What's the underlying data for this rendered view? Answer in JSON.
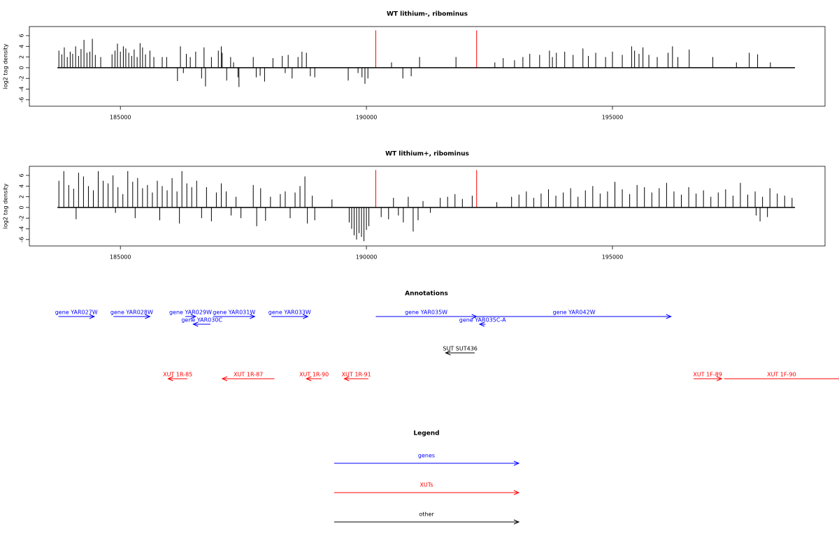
{
  "chart_data": [
    {
      "type": "bar",
      "title": "WT lithium-, ribominus",
      "ylabel": "log2 tag density",
      "xlim": [
        183150,
        199320
      ],
      "ylim": [
        -7.2,
        7.7
      ],
      "xticks": [
        185000,
        190000,
        195000
      ],
      "yticks": [
        -6,
        -4,
        -2,
        0,
        2,
        4,
        6
      ],
      "color": "#000000",
      "baseline": [
        183720,
        198710
      ],
      "x": [
        183750,
        183810,
        183860,
        183920,
        183980,
        184030,
        184090,
        184150,
        184200,
        184260,
        184320,
        184380,
        184430,
        184490,
        184600,
        184830,
        184890,
        184940,
        185000,
        185060,
        185110,
        185170,
        185230,
        185280,
        185340,
        185400,
        185450,
        185510,
        185600,
        185680,
        185850,
        185940,
        186160,
        186220,
        186280,
        186340,
        186420,
        186530,
        186650,
        186700,
        186730,
        186850,
        186990,
        187050,
        187070,
        187160,
        187240,
        187300,
        187390,
        187410,
        187700,
        187760,
        187840,
        187930,
        188100,
        188290,
        188350,
        188410,
        188490,
        188610,
        188690,
        188780,
        188860,
        188950,
        189630,
        189830,
        189910,
        189970,
        190030,
        190510,
        190740,
        190910,
        191080,
        191820,
        192610,
        192780,
        193010,
        193180,
        193320,
        193520,
        193720,
        193780,
        193860,
        194030,
        194200,
        194400,
        194510,
        194660,
        194860,
        195000,
        195200,
        195390,
        195450,
        195540,
        195620,
        195740,
        195910,
        196130,
        196220,
        196330,
        196560,
        197040,
        197520,
        197780,
        197950,
        198210
      ],
      "values": [
        3.2,
        2.5,
        3.8,
        2.0,
        3.0,
        2.6,
        4.0,
        2.2,
        3.5,
        5.2,
        2.8,
        3.0,
        5.4,
        2.4,
        2.0,
        2.5,
        3.2,
        4.5,
        3.0,
        4.0,
        3.6,
        2.8,
        2.2,
        3.4,
        2.0,
        4.6,
        3.8,
        2.5,
        3.2,
        2.0,
        2.0,
        2.0,
        -2.5,
        4.0,
        -1.0,
        2.6,
        2.0,
        3.0,
        -2.0,
        3.8,
        -3.5,
        2.0,
        3.2,
        4.0,
        2.8,
        -2.4,
        2.0,
        1.0,
        -1.8,
        -3.6,
        2.0,
        -1.8,
        -1.5,
        -2.6,
        1.8,
        2.2,
        -1.0,
        2.4,
        -2.0,
        2.0,
        3.0,
        2.8,
        -1.6,
        -1.8,
        -2.4,
        -1.0,
        -1.8,
        -3.0,
        -2.0,
        1.0,
        -2.0,
        -1.6,
        2.0,
        2.0,
        1.0,
        1.8,
        1.4,
        2.0,
        2.6,
        2.4,
        3.2,
        2.0,
        2.8,
        3.0,
        2.4,
        3.6,
        2.2,
        2.8,
        2.0,
        3.0,
        2.4,
        4.0,
        3.2,
        2.6,
        3.8,
        2.4,
        2.0,
        2.8,
        4.0,
        2.0,
        3.4,
        2.0,
        1.0,
        2.8,
        2.5,
        1.0
      ],
      "highlight": {
        "color": "#ff0000",
        "x": [
          190190,
          192240
        ],
        "values": [
          7,
          7
        ]
      }
    },
    {
      "type": "bar",
      "title": "WT lithium+, ribominus",
      "ylabel": "log2 tag density",
      "xlim": [
        183150,
        199320
      ],
      "ylim": [
        -7.2,
        7.7
      ],
      "xticks": [
        185000,
        190000,
        195000
      ],
      "yticks": [
        -6,
        -4,
        -2,
        0,
        2,
        4,
        6
      ],
      "color": "#000000",
      "baseline": [
        183720,
        198710
      ],
      "x": [
        183750,
        183850,
        183950,
        184050,
        184150,
        184250,
        184350,
        184450,
        184550,
        184650,
        184750,
        184850,
        184950,
        185050,
        185150,
        185250,
        185350,
        185450,
        185550,
        185650,
        185750,
        185850,
        185950,
        186050,
        186150,
        186250,
        186350,
        186450,
        184100,
        184900,
        185300,
        185800,
        186200,
        186550,
        186650,
        186750,
        186850,
        186950,
        187050,
        187150,
        187250,
        187350,
        187450,
        187700,
        187770,
        187850,
        187950,
        188050,
        188250,
        188350,
        188450,
        188550,
        188650,
        188750,
        188800,
        188900,
        188950,
        189300,
        189650,
        189700,
        189750,
        189800,
        189850,
        189900,
        189950,
        190000,
        190050,
        190300,
        190450,
        190550,
        190650,
        190750,
        190850,
        190950,
        191050,
        191150,
        191300,
        191500,
        191650,
        191800,
        191950,
        192150,
        192650,
        192950,
        193100,
        193250,
        193400,
        193550,
        193700,
        193850,
        194000,
        194150,
        194300,
        194450,
        194600,
        194750,
        194900,
        195050,
        195200,
        195350,
        195500,
        195650,
        195800,
        195950,
        196100,
        196250,
        196400,
        196550,
        196700,
        196850,
        197000,
        197150,
        197300,
        197450,
        197600,
        197750,
        197900,
        198050,
        198200,
        198350,
        198500,
        198650,
        197920,
        198000,
        198150
      ],
      "values": [
        5,
        6.8,
        4.2,
        3.5,
        6.5,
        5.8,
        4,
        3.2,
        6.8,
        5,
        4.5,
        6,
        3.8,
        2.5,
        6.8,
        4.8,
        5.5,
        3.6,
        4.2,
        2.8,
        5,
        4,
        3.2,
        5.5,
        3,
        6.8,
        4.5,
        3.8,
        -2.2,
        -1.0,
        -2.0,
        -2.4,
        -3.0,
        5.0,
        -2.0,
        3.8,
        -2.6,
        2.8,
        4.5,
        3.0,
        -1.5,
        2.0,
        -2.0,
        4.2,
        -3.5,
        3.6,
        -2.5,
        2.0,
        2.5,
        3.0,
        -2.0,
        2.8,
        4.0,
        5.8,
        -3.0,
        2.2,
        -2.4,
        1.5,
        -2.8,
        -4.0,
        -5.2,
        -6.0,
        -4.8,
        -5.5,
        -6.3,
        -4.2,
        -3.5,
        -1.8,
        -2.2,
        1.8,
        -1.5,
        -2.8,
        2.0,
        -4.5,
        -2.4,
        1.2,
        -1.0,
        1.8,
        2.0,
        2.5,
        1.6,
        2.2,
        1.0,
        2.0,
        2.4,
        3.0,
        1.8,
        2.6,
        3.4,
        2.2,
        2.8,
        3.6,
        2.0,
        3.2,
        4.0,
        2.6,
        3.0,
        4.8,
        3.4,
        2.5,
        4.2,
        3.8,
        2.8,
        3.6,
        4.6,
        3.0,
        2.4,
        3.8,
        2.6,
        3.2,
        2.0,
        2.8,
        3.4,
        2.2,
        4.6,
        2.4,
        3.0,
        2.0,
        3.6,
        2.6,
        2.2,
        1.8,
        -1.5,
        -2.6,
        -1.8
      ],
      "highlight": {
        "color": "#ff0000",
        "x": [
          190190,
          192240
        ],
        "values": [
          7,
          7
        ]
      }
    }
  ],
  "annotations": {
    "title": "Annotations",
    "xlim": [
      183150,
      199320
    ],
    "features": [
      {
        "label": "gene YAR027W",
        "kind": "gene",
        "strand": "+",
        "start": 183740,
        "end": 184470,
        "color": "#0000ff"
      },
      {
        "label": "gene YAR028W",
        "kind": "gene",
        "strand": "+",
        "start": 184860,
        "end": 185600,
        "color": "#0000ff"
      },
      {
        "label": "gene YAR029W",
        "kind": "gene",
        "strand": "+",
        "start": 186320,
        "end": 186530,
        "color": "#0000ff"
      },
      {
        "label": "gene YAR030C",
        "kind": "gene",
        "strand": "-",
        "start": 186480,
        "end": 186830,
        "color": "#0000ff"
      },
      {
        "label": "gene YAR031W",
        "kind": "gene",
        "strand": "+",
        "start": 186890,
        "end": 187730,
        "color": "#0000ff"
      },
      {
        "label": "gene YAR033W",
        "kind": "gene",
        "strand": "+",
        "start": 188070,
        "end": 188810,
        "color": "#0000ff"
      },
      {
        "label": "gene YAR035W",
        "kind": "gene",
        "strand": "+",
        "start": 190190,
        "end": 192240,
        "color": "#0000ff"
      },
      {
        "label": "gene YAR042W",
        "kind": "gene",
        "strand": "+",
        "start": 192250,
        "end": 196190,
        "color": "#0000ff"
      },
      {
        "label": "gene YAR035C-A",
        "kind": "gene",
        "strand": "-",
        "start": 192300,
        "end": 192420,
        "color": "#0000ff"
      },
      {
        "label": "SUT SUT436",
        "kind": "other",
        "strand": "-",
        "start": 191610,
        "end": 192200,
        "color": "#000000"
      },
      {
        "label": "XUT 1R-85",
        "kind": "XUT",
        "strand": "-",
        "start": 185970,
        "end": 186360,
        "color": "#ff0000"
      },
      {
        "label": "XUT 1R-87",
        "kind": "XUT",
        "strand": "-",
        "start": 187070,
        "end": 188130,
        "color": "#ff0000"
      },
      {
        "label": "XUT 1R-90",
        "kind": "XUT",
        "strand": "-",
        "start": 188780,
        "end": 189090,
        "color": "#ff0000"
      },
      {
        "label": "XUT 1R-91",
        "kind": "XUT",
        "strand": "-",
        "start": 189550,
        "end": 190040,
        "color": "#ff0000"
      },
      {
        "label": "XUT 1F-89",
        "kind": "XUT",
        "strand": "+",
        "start": 196650,
        "end": 197220,
        "color": "#ff0000"
      },
      {
        "label": "XUT 1F-90",
        "kind": "XUT",
        "strand": "+",
        "start": 197270,
        "end": 199700,
        "color": "#ff0000"
      }
    ]
  },
  "legend": {
    "title": "Legend",
    "items": [
      {
        "label": "genes",
        "color": "#0000ff"
      },
      {
        "label": "XUTs",
        "color": "#ff0000"
      },
      {
        "label": "other",
        "color": "#000000"
      }
    ]
  }
}
